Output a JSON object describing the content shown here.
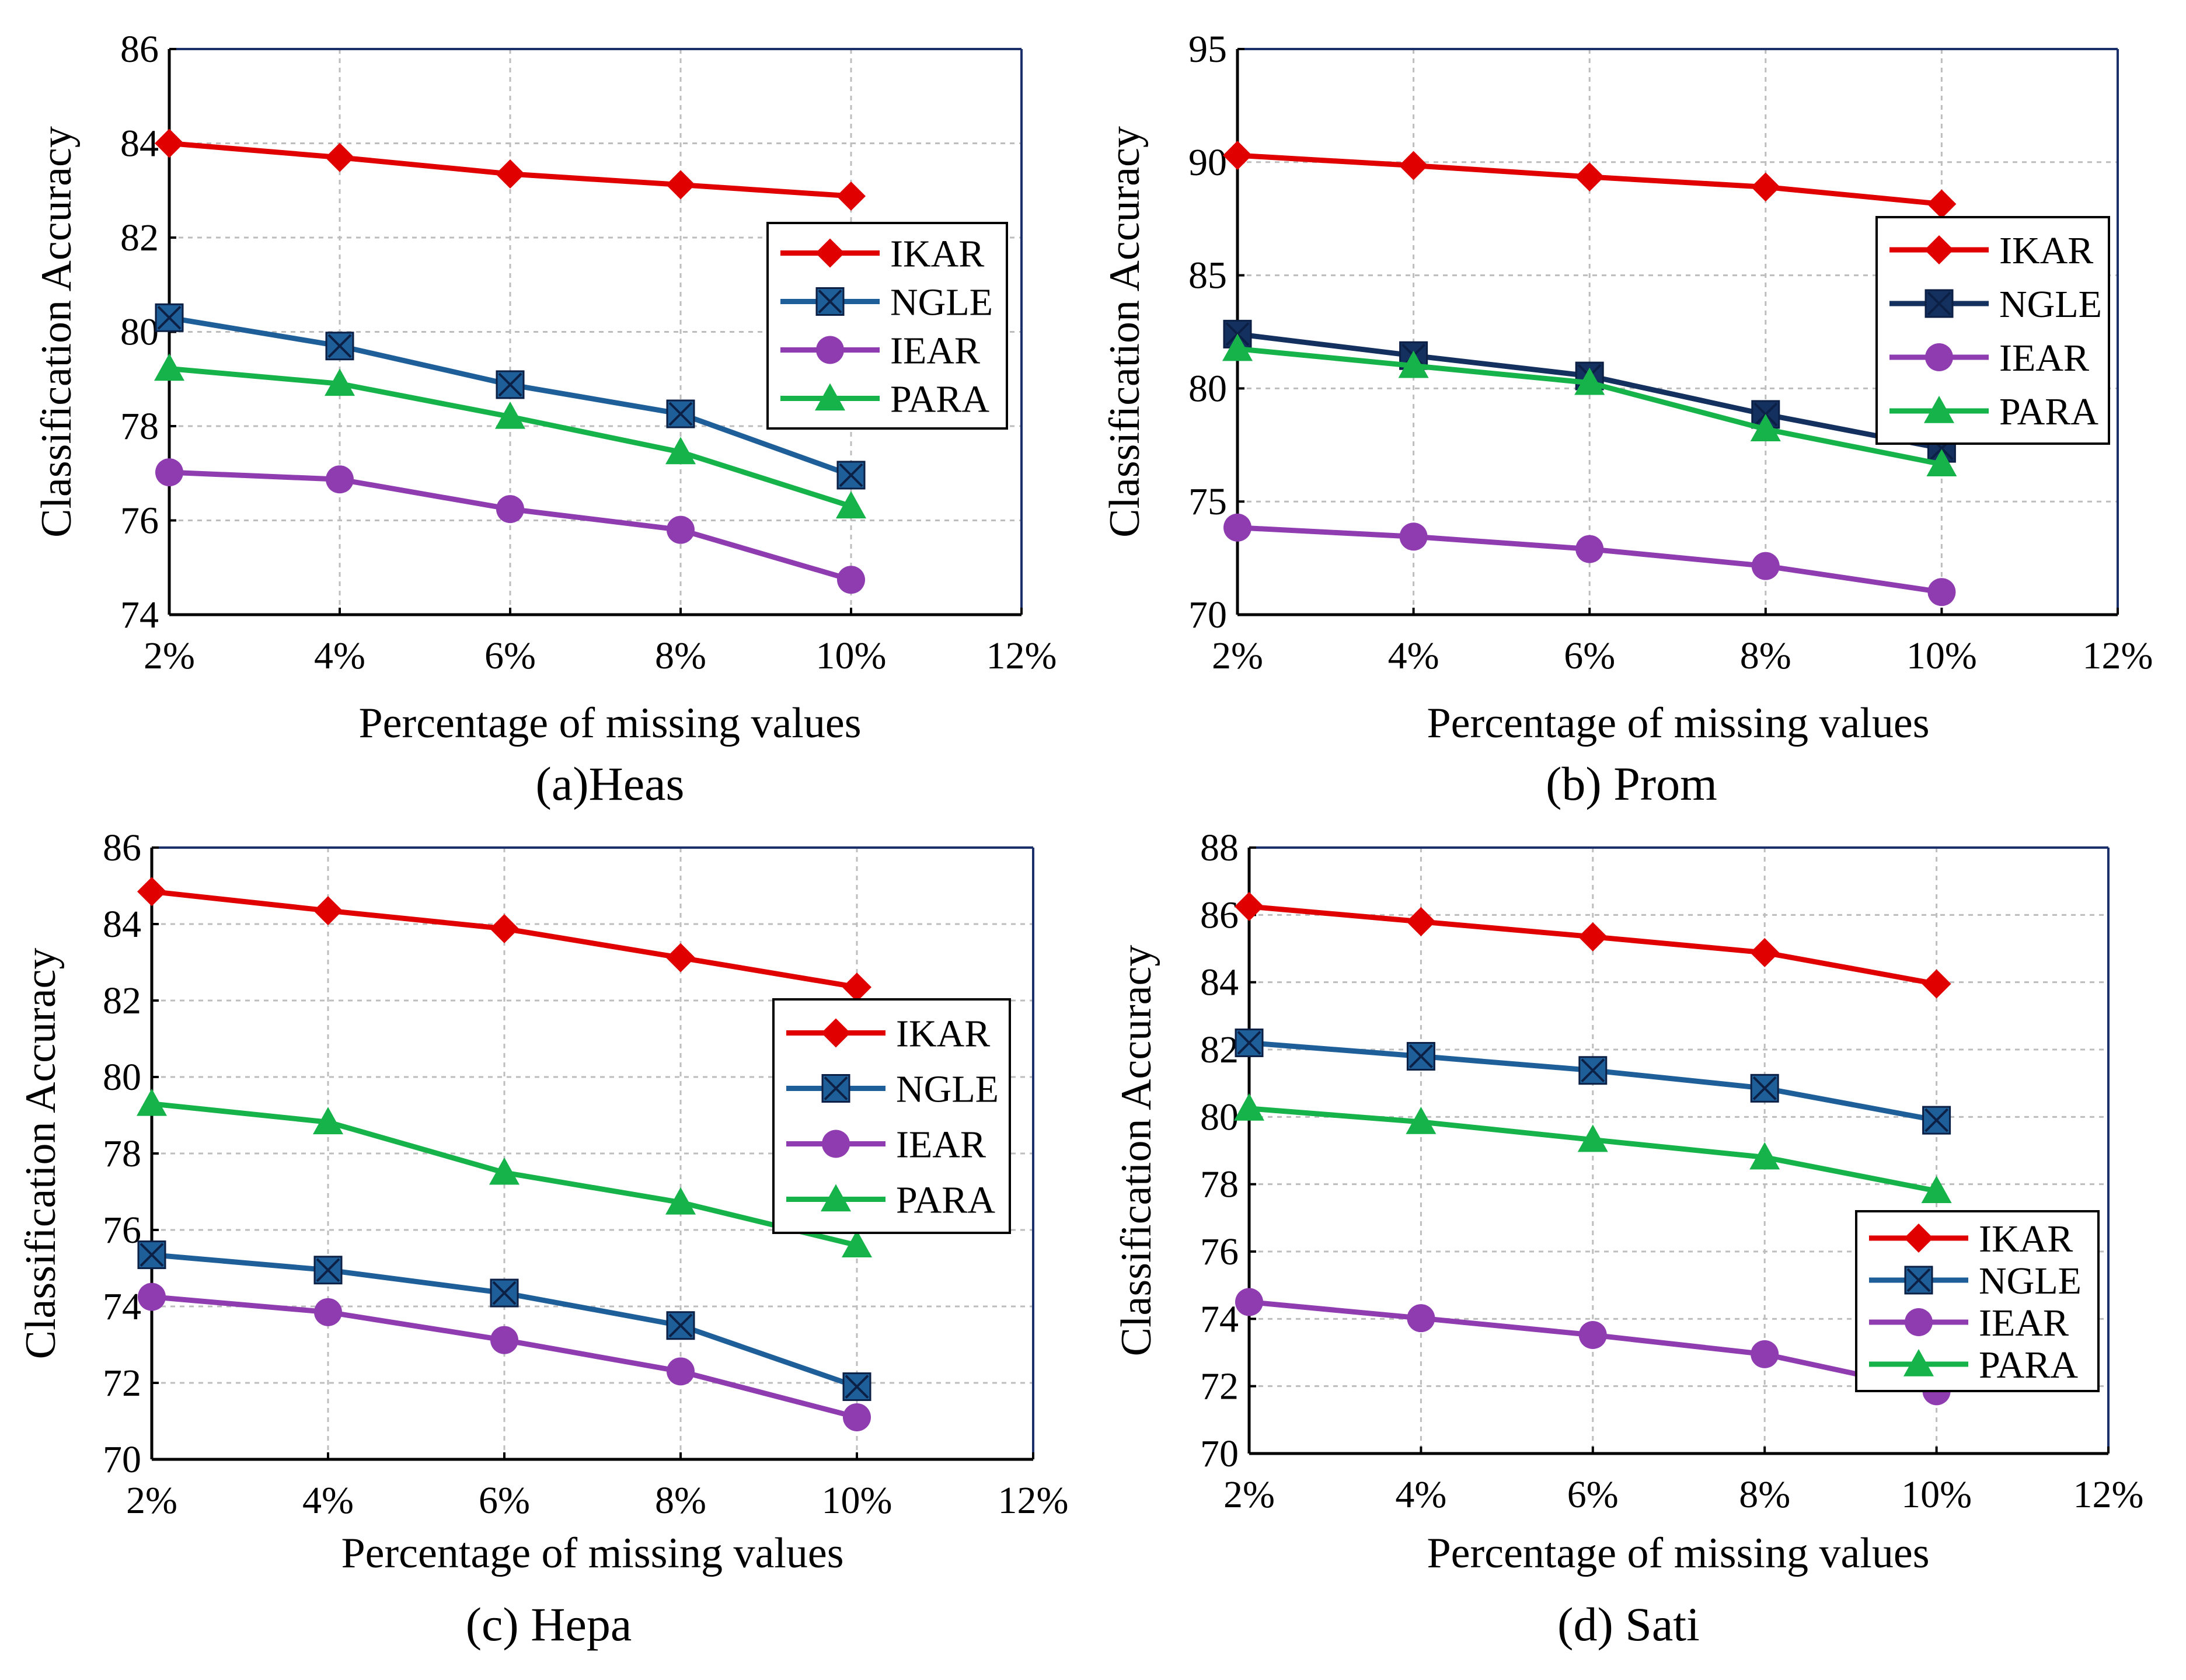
{
  "chart_data": [
    {
      "type": "line",
      "caption": "(a)Heas",
      "xlabel": "Percentage  of missing values",
      "ylabel": "Classification Accuracy",
      "x_tick_labels": [
        "2%",
        "4%",
        "6%",
        "8%",
        "10%",
        "12%"
      ],
      "x": [
        2,
        4,
        6,
        8,
        10
      ],
      "xlim": [
        2,
        12
      ],
      "ylim": [
        74,
        86
      ],
      "y_ticks": [
        74,
        76,
        78,
        80,
        82,
        84,
        86
      ],
      "grid": true,
      "legend_position": "right",
      "series": [
        {
          "name": "IKAR",
          "color": "#e00000",
          "marker": "diamond",
          "values": [
            84.0,
            83.7,
            83.35,
            83.12,
            82.88
          ]
        },
        {
          "name": "NGLE",
          "color": "#1f5f99",
          "marker": "square-x",
          "values": [
            80.3,
            79.7,
            78.88,
            78.26,
            76.96
          ]
        },
        {
          "name": "IEAR",
          "color": "#8e3cb0",
          "marker": "circle",
          "values": [
            77.02,
            76.87,
            76.24,
            75.8,
            74.74
          ]
        },
        {
          "name": "PARA",
          "color": "#16b34a",
          "marker": "triangle",
          "values": [
            79.22,
            78.9,
            78.2,
            77.45,
            76.3
          ]
        }
      ]
    },
    {
      "type": "line",
      "caption": "(b) Prom",
      "xlabel": "Percentage  of missing values",
      "ylabel": "Classification Accuracy",
      "x_tick_labels": [
        "2%",
        "4%",
        "6%",
        "8%",
        "10%",
        "12%"
      ],
      "x": [
        2,
        4,
        6,
        8,
        10
      ],
      "xlim": [
        2,
        12
      ],
      "ylim": [
        70,
        95
      ],
      "y_ticks": [
        70,
        75,
        80,
        85,
        90,
        95
      ],
      "grid": true,
      "legend_position": "right",
      "series": [
        {
          "name": "IKAR",
          "color": "#e00000",
          "marker": "diamond",
          "values": [
            90.3,
            89.85,
            89.35,
            88.9,
            88.15
          ]
        },
        {
          "name": "NGLE",
          "color": "#14305e",
          "marker": "square-x",
          "values": [
            82.4,
            81.45,
            80.55,
            78.85,
            77.35
          ]
        },
        {
          "name": "IEAR",
          "color": "#8e3cb0",
          "marker": "circle",
          "values": [
            73.85,
            73.45,
            72.9,
            72.15,
            71.0
          ]
        },
        {
          "name": "PARA",
          "color": "#16b34a",
          "marker": "triangle",
          "values": [
            81.75,
            81.0,
            80.25,
            78.2,
            76.65
          ]
        }
      ]
    },
    {
      "type": "line",
      "caption": "(c) Hepa",
      "xlabel": "Percentage  of missing values",
      "ylabel": "Classification Accuracy",
      "x_tick_labels": [
        "2%",
        "4%",
        "6%",
        "8%",
        "10%",
        "12%"
      ],
      "x": [
        2,
        4,
        6,
        8,
        10
      ],
      "xlim": [
        2,
        12
      ],
      "ylim": [
        70,
        86
      ],
      "y_ticks": [
        70,
        72,
        74,
        76,
        78,
        80,
        82,
        84,
        86
      ],
      "grid": true,
      "legend_position": "right",
      "series": [
        {
          "name": "IKAR",
          "color": "#e00000",
          "marker": "diamond",
          "values": [
            84.85,
            84.35,
            83.88,
            83.12,
            82.35
          ]
        },
        {
          "name": "NGLE",
          "color": "#1f5f99",
          "marker": "square-x",
          "values": [
            75.35,
            74.95,
            74.35,
            73.5,
            71.9
          ]
        },
        {
          "name": "IEAR",
          "color": "#8e3cb0",
          "marker": "circle",
          "values": [
            74.25,
            73.85,
            73.12,
            72.3,
            71.1
          ]
        },
        {
          "name": "PARA",
          "color": "#16b34a",
          "marker": "triangle",
          "values": [
            79.3,
            78.82,
            77.5,
            76.72,
            75.6
          ]
        }
      ]
    },
    {
      "type": "line",
      "caption": "(d) Sati",
      "xlabel": "Percentage  of missing values",
      "ylabel": "Classification Accuracy",
      "x_tick_labels": [
        "2%",
        "4%",
        "6%",
        "8%",
        "10%",
        "12%"
      ],
      "x": [
        2,
        4,
        6,
        8,
        10
      ],
      "xlim": [
        2,
        12
      ],
      "ylim": [
        70,
        88
      ],
      "y_ticks": [
        70,
        72,
        74,
        76,
        78,
        80,
        82,
        84,
        86,
        88
      ],
      "grid": true,
      "legend_position": "bottom-right",
      "series": [
        {
          "name": "IKAR",
          "color": "#e00000",
          "marker": "diamond",
          "values": [
            86.25,
            85.8,
            85.35,
            84.88,
            83.95
          ]
        },
        {
          "name": "NGLE",
          "color": "#1f5f99",
          "marker": "square-x",
          "values": [
            82.2,
            81.8,
            81.38,
            80.85,
            79.9
          ]
        },
        {
          "name": "IEAR",
          "color": "#8e3cb0",
          "marker": "circle",
          "values": [
            74.5,
            74.02,
            73.52,
            72.95,
            71.85
          ]
        },
        {
          "name": "PARA",
          "color": "#16b34a",
          "marker": "triangle",
          "values": [
            80.25,
            79.85,
            79.32,
            78.8,
            77.8
          ]
        }
      ]
    }
  ]
}
